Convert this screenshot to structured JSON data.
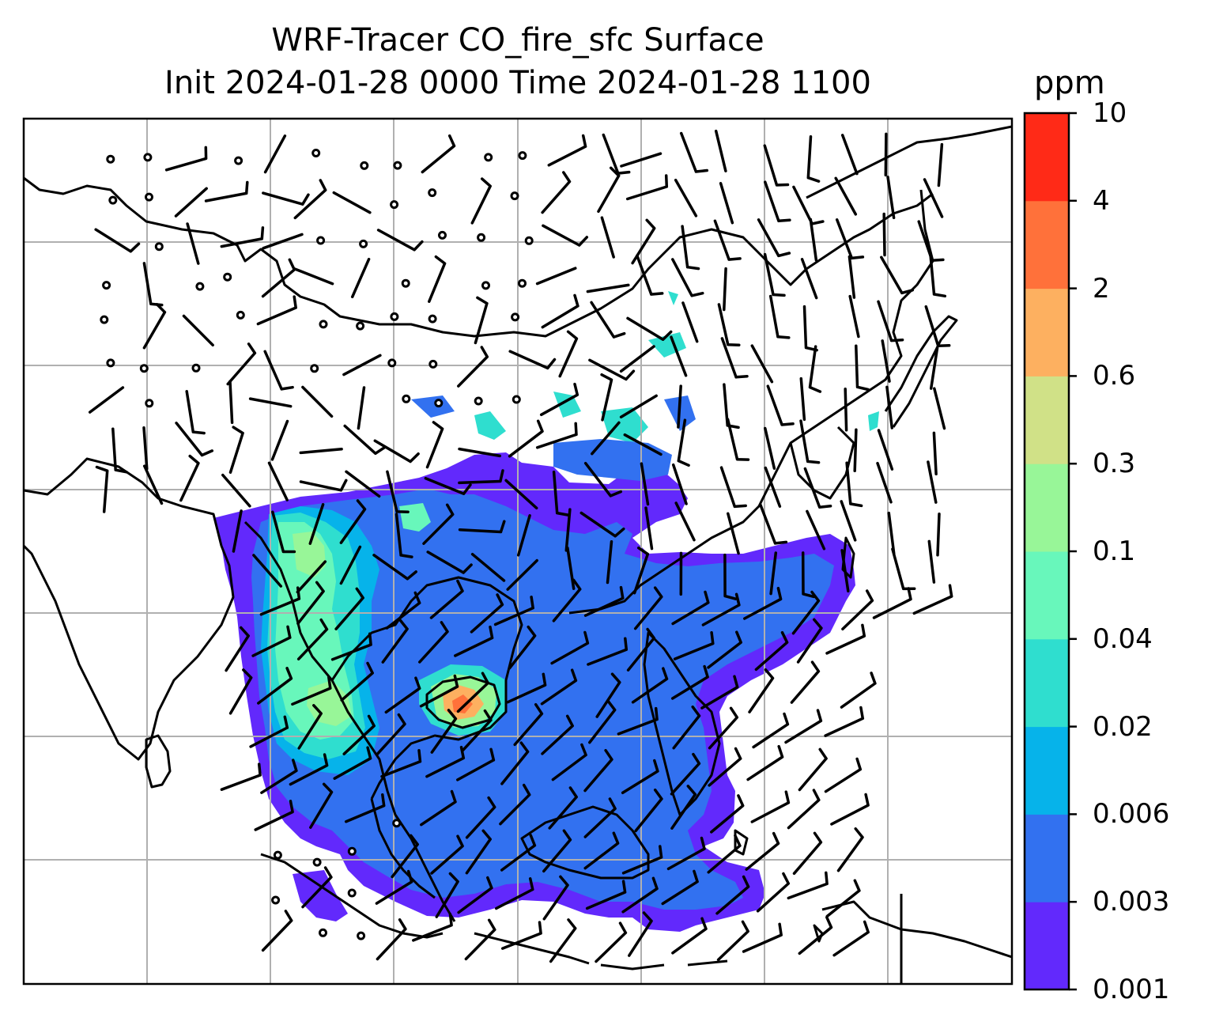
{
  "title": {
    "line1": "WRF-Tracer CO_fire_sfc Surface",
    "line2": "Init 2024-01-28 0000 Time 2024-01-28 1100"
  },
  "colorbar": {
    "units": "ppm",
    "levels": [
      {
        "label": "0.001",
        "color": "#6229fc"
      },
      {
        "label": "0.003",
        "color": "#3271f0"
      },
      {
        "label": "0.006",
        "color": "#06b3ea"
      },
      {
        "label": "0.02",
        "color": "#2fdecf"
      },
      {
        "label": "0.04",
        "color": "#68f7bb"
      },
      {
        "label": "0.1",
        "color": "#98f698"
      },
      {
        "label": "0.3",
        "color": "#d0e187"
      },
      {
        "label": "0.6",
        "color": "#fdb060"
      },
      {
        "label": "2",
        "color": "#ff713a"
      },
      {
        "label": "4",
        "color": "#ff2a17"
      },
      {
        "label": "10",
        "color": null
      }
    ]
  },
  "map": {
    "gridlines": true,
    "wind_barbs": true,
    "calm_markers": true,
    "coastlines": true
  }
}
